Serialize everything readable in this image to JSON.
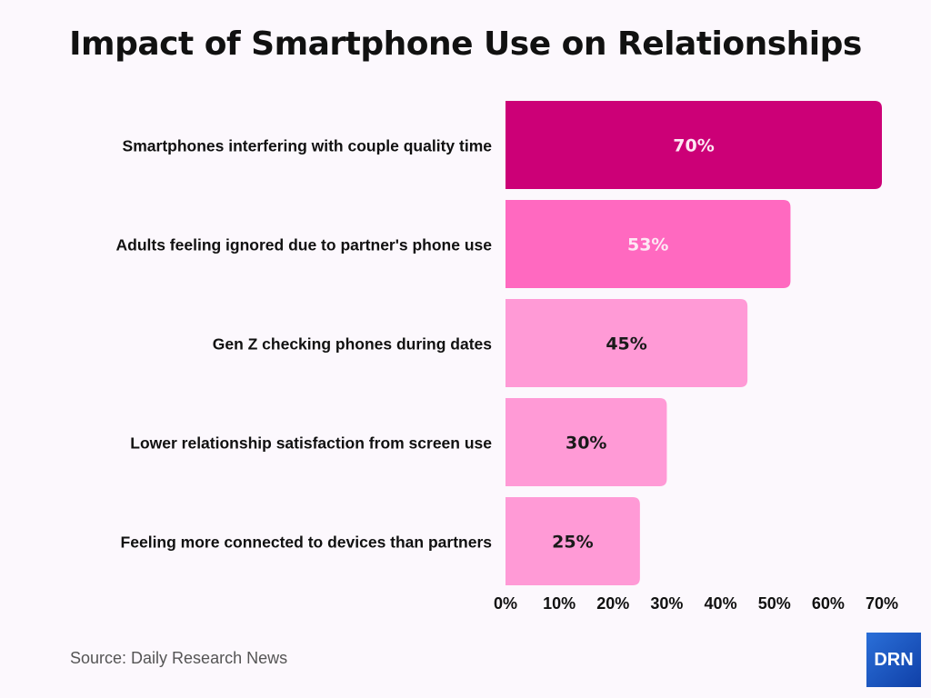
{
  "chart_data": {
    "type": "bar",
    "orientation": "horizontal",
    "title": "Impact of Smartphone Use on Relationships",
    "categories": [
      "Smartphones interfering with couple quality time",
      "Adults feeling ignored due to partner's phone use",
      "Gen Z checking phones during dates",
      "Lower relationship satisfaction from screen use",
      "Feeling more connected to devices than partners"
    ],
    "values": [
      70,
      53,
      45,
      30,
      25
    ],
    "data_labels": [
      "70%",
      "53%",
      "45%",
      "30%",
      "25%"
    ],
    "bar_colors": [
      "#cc0077",
      "#ff69c0",
      "#ff9ad6",
      "#ff9ad6",
      "#ff9ad6"
    ],
    "label_colors": [
      "#fde8f4",
      "#fde8f4",
      "#1a1a1a",
      "#1a1a1a",
      "#1a1a1a"
    ],
    "xlim": [
      0,
      70
    ],
    "xticks": [
      "0%",
      "10%",
      "20%",
      "30%",
      "40%",
      "50%",
      "60%",
      "70%"
    ],
    "grid": false,
    "xlabel": "",
    "ylabel": ""
  },
  "source": "Source: Daily Research News",
  "logo_text": "DRN",
  "background": "#fcf8fd"
}
